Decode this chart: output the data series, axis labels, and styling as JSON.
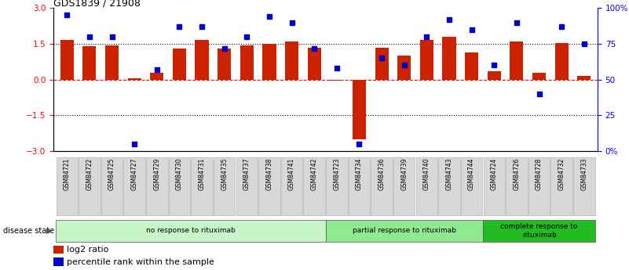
{
  "title": "GDS1839 / 21908",
  "samples": [
    "GSM84721",
    "GSM84722",
    "GSM84725",
    "GSM84727",
    "GSM84729",
    "GSM84730",
    "GSM84731",
    "GSM84735",
    "GSM84737",
    "GSM84738",
    "GSM84741",
    "GSM84742",
    "GSM84723",
    "GSM84734",
    "GSM84736",
    "GSM84739",
    "GSM84740",
    "GSM84743",
    "GSM84744",
    "GSM84724",
    "GSM84726",
    "GSM84728",
    "GSM84732",
    "GSM84733"
  ],
  "log2_ratio": [
    1.65,
    1.4,
    1.45,
    0.05,
    0.3,
    1.3,
    1.65,
    1.3,
    1.45,
    1.5,
    1.6,
    1.35,
    -0.05,
    -2.5,
    1.35,
    1.0,
    1.65,
    1.8,
    1.15,
    0.35,
    1.6,
    0.3,
    1.55,
    0.15
  ],
  "percentile_rank": [
    95,
    80,
    80,
    5,
    57,
    87,
    87,
    72,
    80,
    94,
    90,
    72,
    58,
    5,
    65,
    60,
    80,
    92,
    85,
    60,
    90,
    40,
    87,
    75
  ],
  "groups": [
    {
      "label": "no response to rituximab",
      "start": 0,
      "end": 12,
      "color": "#c8f5c8"
    },
    {
      "label": "partial response to rituximab",
      "start": 12,
      "end": 19,
      "color": "#90e890"
    },
    {
      "label": "complete response to\nrituximab",
      "start": 19,
      "end": 24,
      "color": "#22bb22"
    }
  ],
  "bar_color": "#cc2200",
  "dot_color": "#0000cc",
  "ylim_left": [
    -3,
    3
  ],
  "ylim_right": [
    0,
    100
  ],
  "yticks_left": [
    -3,
    -1.5,
    0,
    1.5,
    3
  ],
  "yticks_right": [
    0,
    25,
    50,
    75,
    100
  ],
  "ytick_labels_right": [
    "0%",
    "25",
    "50",
    "75",
    "100%"
  ],
  "background_color": "#ffffff",
  "legend_items": [
    {
      "label": "log2 ratio",
      "color": "#cc2200"
    },
    {
      "label": "percentile rank within the sample",
      "color": "#0000cc"
    }
  ],
  "label_bg_color": "#d8d8d8",
  "label_border_color": "#aaaaaa"
}
